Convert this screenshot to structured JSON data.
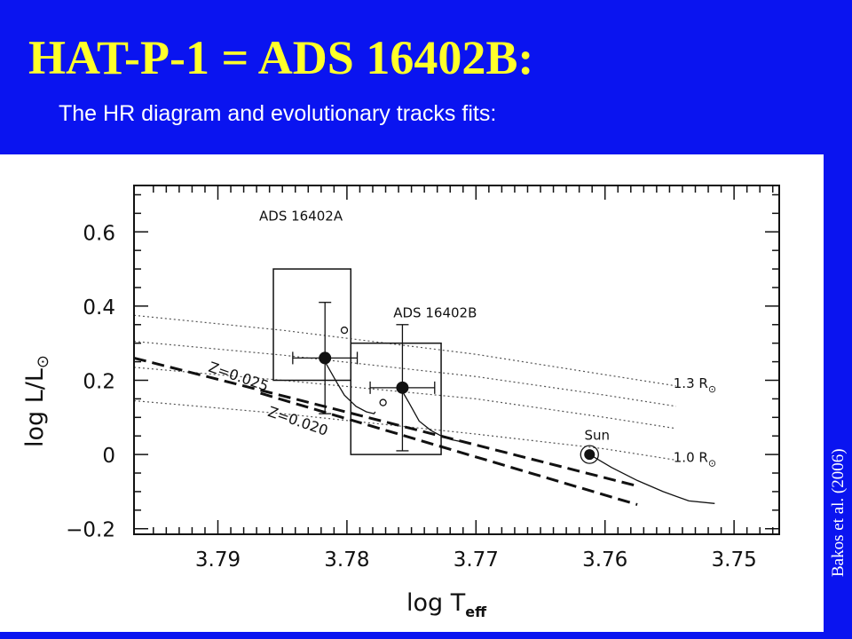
{
  "slide": {
    "title": "HAT-P-1 = ADS 16402B:",
    "subtitle": "The HR diagram and evolutionary tracks fits:",
    "credit": "Bakos et al. (2006)"
  },
  "colors": {
    "background": "#0a14f0",
    "title": "#ffff2a",
    "subtitle": "#ffffff",
    "plot_ink": "#111111"
  },
  "chart_data": {
    "type": "scatter",
    "xlabel": "log T",
    "xlabel_sub": "eff",
    "ylabel": "log L/L",
    "ylabel_sub": "⊙",
    "xlim": [
      3.7965,
      3.7465
    ],
    "ylim": [
      -0.215,
      0.725
    ],
    "x_ticks": [
      3.79,
      3.78,
      3.77,
      3.76,
      3.75
    ],
    "x_tick_labels": [
      "3.79",
      "3.78",
      "3.77",
      "3.76",
      "3.75"
    ],
    "y_ticks": [
      0.6,
      0.4,
      0.2,
      0,
      -0.2
    ],
    "y_tick_labels": [
      "0.6",
      "0.4",
      "0.2",
      "0",
      "−0.2"
    ],
    "x_axis_reversed": true,
    "grid": false,
    "stars": [
      {
        "label": "ADS 16402A",
        "x": 3.7817,
        "y": 0.26,
        "xerr": 0.0025,
        "yerr": 0.15
      },
      {
        "label": "ADS 16402B",
        "x": 3.7757,
        "y": 0.18,
        "xerr": 0.0025,
        "yerr": 0.17
      }
    ],
    "open_points": [
      {
        "x": 3.7802,
        "y": 0.335
      },
      {
        "x": 3.7772,
        "y": 0.14
      }
    ],
    "sun": {
      "label": "Sun",
      "x": 3.7612,
      "y": 0.0
    },
    "boxes": [
      {
        "x0": 3.7857,
        "x1": 3.7797,
        "y0": 0.2,
        "y1": 0.5
      },
      {
        "x0": 3.7797,
        "x1": 3.7727,
        "y0": 0.0,
        "y1": 0.3
      }
    ],
    "radius_lines": [
      {
        "label": "1.3 R",
        "points": [
          [
            3.7965,
            0.375
          ],
          [
            3.785,
            0.335
          ],
          [
            3.77,
            0.27
          ],
          [
            3.76,
            0.215
          ],
          [
            3.7545,
            0.185
          ]
        ]
      },
      {
        "label": "",
        "points": [
          [
            3.7965,
            0.305
          ],
          [
            3.785,
            0.268
          ],
          [
            3.77,
            0.21
          ],
          [
            3.76,
            0.16
          ],
          [
            3.7545,
            0.13
          ]
        ]
      },
      {
        "label": "",
        "points": [
          [
            3.7965,
            0.235
          ],
          [
            3.785,
            0.2
          ],
          [
            3.77,
            0.15
          ],
          [
            3.76,
            0.1
          ],
          [
            3.7545,
            0.07
          ]
        ]
      },
      {
        "label": "1.0 R",
        "points": [
          [
            3.7965,
            0.145
          ],
          [
            3.785,
            0.11
          ],
          [
            3.77,
            0.055
          ],
          [
            3.76,
            0.015
          ],
          [
            3.7545,
            -0.015
          ]
        ]
      }
    ],
    "radius_unit": "⊙",
    "metallicity_lines": [
      {
        "label": "Z=0.025",
        "points": [
          [
            3.7965,
            0.26
          ],
          [
            3.7575,
            -0.085
          ]
        ]
      },
      {
        "label": "Z=0.020",
        "points": [
          [
            3.7867,
            0.165
          ],
          [
            3.7575,
            -0.135
          ]
        ]
      }
    ],
    "tracks": [
      [
        [
          3.7817,
          0.25
        ],
        [
          3.7808,
          0.195
        ],
        [
          3.7802,
          0.16
        ],
        [
          3.7793,
          0.13
        ],
        [
          3.7785,
          0.115
        ],
        [
          3.7779,
          0.11
        ],
        [
          3.7778,
          0.115
        ]
      ],
      [
        [
          3.7757,
          0.17
        ],
        [
          3.7752,
          0.14
        ],
        [
          3.7744,
          0.09
        ],
        [
          3.7735,
          0.065
        ],
        [
          3.7727,
          0.05
        ],
        [
          3.7719,
          0.04
        ],
        [
          3.7712,
          0.035
        ]
      ],
      [
        [
          3.7612,
          0.0
        ],
        [
          3.7595,
          -0.035
        ],
        [
          3.7575,
          -0.07
        ],
        [
          3.7555,
          -0.1
        ],
        [
          3.7535,
          -0.125
        ],
        [
          3.7515,
          -0.132
        ]
      ]
    ]
  }
}
